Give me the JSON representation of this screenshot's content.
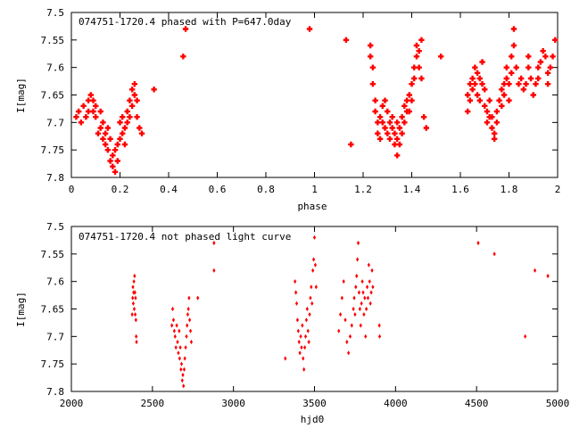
{
  "chart_data": [
    {
      "type": "scatter",
      "title": "074751-1720.4 phased with P=647.0day",
      "xlabel": "phase",
      "ylabel": "I[mag]",
      "xlim": [
        0,
        2
      ],
      "ylim": [
        7.8,
        7.5
      ],
      "y_inverted": true,
      "xticks": [
        "0",
        "0.2",
        "0.4",
        "0.6",
        "0.8",
        "1",
        "1.2",
        "1.4",
        "1.6",
        "1.8",
        "2"
      ],
      "yticks": [
        "7.5",
        "7.55",
        "7.6",
        "7.65",
        "7.7",
        "7.75",
        "7.8"
      ],
      "marker": "plus",
      "color": "#ff0000",
      "points": [
        [
          0.02,
          7.69
        ],
        [
          0.03,
          7.68
        ],
        [
          0.04,
          7.7
        ],
        [
          0.05,
          7.67
        ],
        [
          0.06,
          7.69
        ],
        [
          0.07,
          7.66
        ],
        [
          0.07,
          7.68
        ],
        [
          0.08,
          7.65
        ],
        [
          0.09,
          7.66
        ],
        [
          0.09,
          7.68
        ],
        [
          0.1,
          7.67
        ],
        [
          0.1,
          7.69
        ],
        [
          0.11,
          7.72
        ],
        [
          0.12,
          7.68
        ],
        [
          0.12,
          7.71
        ],
        [
          0.13,
          7.73
        ],
        [
          0.13,
          7.7
        ],
        [
          0.14,
          7.72
        ],
        [
          0.14,
          7.74
        ],
        [
          0.15,
          7.71
        ],
        [
          0.15,
          7.75
        ],
        [
          0.16,
          7.73
        ],
        [
          0.16,
          7.77
        ],
        [
          0.17,
          7.76
        ],
        [
          0.17,
          7.78
        ],
        [
          0.18,
          7.75
        ],
        [
          0.18,
          7.79
        ],
        [
          0.19,
          7.77
        ],
        [
          0.19,
          7.74
        ],
        [
          0.2,
          7.73
        ],
        [
          0.2,
          7.7
        ],
        [
          0.21,
          7.72
        ],
        [
          0.21,
          7.69
        ],
        [
          0.22,
          7.71
        ],
        [
          0.22,
          7.74
        ],
        [
          0.23,
          7.7
        ],
        [
          0.23,
          7.68
        ],
        [
          0.24,
          7.69
        ],
        [
          0.24,
          7.66
        ],
        [
          0.25,
          7.67
        ],
        [
          0.25,
          7.64
        ],
        [
          0.26,
          7.65
        ],
        [
          0.26,
          7.63
        ],
        [
          0.27,
          7.66
        ],
        [
          0.27,
          7.69
        ],
        [
          0.28,
          7.71
        ],
        [
          0.29,
          7.72
        ],
        [
          0.34,
          7.64
        ],
        [
          0.46,
          7.58
        ],
        [
          0.47,
          7.53
        ],
        [
          0.98,
          7.53
        ],
        [
          1.13,
          7.55
        ],
        [
          1.15,
          7.74
        ],
        [
          1.23,
          7.56
        ],
        [
          1.23,
          7.58
        ],
        [
          1.24,
          7.6
        ],
        [
          1.24,
          7.63
        ],
        [
          1.25,
          7.66
        ],
        [
          1.25,
          7.68
        ],
        [
          1.26,
          7.7
        ],
        [
          1.26,
          7.72
        ],
        [
          1.27,
          7.69
        ],
        [
          1.27,
          7.73
        ],
        [
          1.28,
          7.67
        ],
        [
          1.28,
          7.7
        ],
        [
          1.29,
          7.66
        ],
        [
          1.29,
          7.71
        ],
        [
          1.3,
          7.68
        ],
        [
          1.3,
          7.72
        ],
        [
          1.31,
          7.7
        ],
        [
          1.31,
          7.73
        ],
        [
          1.32,
          7.69
        ],
        [
          1.32,
          7.71
        ],
        [
          1.33,
          7.72
        ],
        [
          1.33,
          7.74
        ],
        [
          1.34,
          7.7
        ],
        [
          1.34,
          7.73
        ],
        [
          1.34,
          7.76
        ],
        [
          1.35,
          7.71
        ],
        [
          1.35,
          7.74
        ],
        [
          1.36,
          7.69
        ],
        [
          1.36,
          7.72
        ],
        [
          1.37,
          7.67
        ],
        [
          1.37,
          7.7
        ],
        [
          1.38,
          7.66
        ],
        [
          1.38,
          7.68
        ],
        [
          1.39,
          7.65
        ],
        [
          1.39,
          7.68
        ],
        [
          1.4,
          7.63
        ],
        [
          1.4,
          7.66
        ],
        [
          1.41,
          7.62
        ],
        [
          1.41,
          7.6
        ],
        [
          1.42,
          7.58
        ],
        [
          1.42,
          7.56
        ],
        [
          1.43,
          7.57
        ],
        [
          1.43,
          7.6
        ],
        [
          1.44,
          7.55
        ],
        [
          1.44,
          7.62
        ],
        [
          1.45,
          7.69
        ],
        [
          1.46,
          7.71
        ],
        [
          1.52,
          7.58
        ],
        [
          1.63,
          7.68
        ],
        [
          1.63,
          7.65
        ],
        [
          1.64,
          7.63
        ],
        [
          1.64,
          7.66
        ],
        [
          1.65,
          7.62
        ],
        [
          1.65,
          7.64
        ],
        [
          1.66,
          7.6
        ],
        [
          1.66,
          7.63
        ],
        [
          1.67,
          7.61
        ],
        [
          1.67,
          7.65
        ],
        [
          1.68,
          7.62
        ],
        [
          1.68,
          7.66
        ],
        [
          1.69,
          7.59
        ],
        [
          1.69,
          7.63
        ],
        [
          1.7,
          7.64
        ],
        [
          1.7,
          7.67
        ],
        [
          1.71,
          7.68
        ],
        [
          1.71,
          7.7
        ],
        [
          1.72,
          7.66
        ],
        [
          1.72,
          7.69
        ],
        [
          1.73,
          7.71
        ],
        [
          1.73,
          7.69
        ],
        [
          1.74,
          7.72
        ],
        [
          1.74,
          7.73
        ],
        [
          1.75,
          7.7
        ],
        [
          1.75,
          7.68
        ],
        [
          1.76,
          7.66
        ],
        [
          1.77,
          7.64
        ],
        [
          1.77,
          7.67
        ],
        [
          1.78,
          7.63
        ],
        [
          1.78,
          7.65
        ],
        [
          1.79,
          7.62
        ],
        [
          1.79,
          7.6
        ],
        [
          1.8,
          7.63
        ],
        [
          1.8,
          7.66
        ],
        [
          1.81,
          7.61
        ],
        [
          1.81,
          7.58
        ],
        [
          1.82,
          7.56
        ],
        [
          1.82,
          7.53
        ],
        [
          1.83,
          7.6
        ],
        [
          1.84,
          7.63
        ],
        [
          1.85,
          7.62
        ],
        [
          1.86,
          7.64
        ],
        [
          1.87,
          7.63
        ],
        [
          1.88,
          7.6
        ],
        [
          1.88,
          7.58
        ],
        [
          1.89,
          7.62
        ],
        [
          1.9,
          7.65
        ],
        [
          1.91,
          7.63
        ],
        [
          1.92,
          7.6
        ],
        [
          1.92,
          7.62
        ],
        [
          1.93,
          7.59
        ],
        [
          1.94,
          7.57
        ],
        [
          1.95,
          7.58
        ],
        [
          1.96,
          7.61
        ],
        [
          1.96,
          7.63
        ],
        [
          1.97,
          7.6
        ],
        [
          1.98,
          7.58
        ],
        [
          1.99,
          7.55
        ]
      ]
    },
    {
      "type": "scatter",
      "title": "074751-1720.4 not phased light curve",
      "xlabel": "hjd0",
      "ylabel": "I[mag]",
      "xlim": [
        2000,
        5000
      ],
      "ylim": [
        7.8,
        7.5
      ],
      "y_inverted": true,
      "xticks": [
        "2000",
        "2500",
        "3000",
        "3500",
        "4000",
        "4500",
        "5000"
      ],
      "yticks": [
        "7.5",
        "7.55",
        "7.6",
        "7.65",
        "7.7",
        "7.75",
        "7.8"
      ],
      "marker": "diamond",
      "color": "#ff0000",
      "points": [
        [
          2375,
          7.66
        ],
        [
          2378,
          7.63
        ],
        [
          2380,
          7.61
        ],
        [
          2382,
          7.64
        ],
        [
          2384,
          7.62
        ],
        [
          2386,
          7.6
        ],
        [
          2388,
          7.65
        ],
        [
          2390,
          7.59
        ],
        [
          2392,
          7.62
        ],
        [
          2394,
          7.66
        ],
        [
          2396,
          7.63
        ],
        [
          2398,
          7.67
        ],
        [
          2400,
          7.7
        ],
        [
          2402,
          7.71
        ],
        [
          2620,
          7.68
        ],
        [
          2625,
          7.65
        ],
        [
          2630,
          7.67
        ],
        [
          2635,
          7.69
        ],
        [
          2640,
          7.7
        ],
        [
          2645,
          7.72
        ],
        [
          2650,
          7.68
        ],
        [
          2655,
          7.71
        ],
        [
          2660,
          7.73
        ],
        [
          2665,
          7.69
        ],
        [
          2668,
          7.74
        ],
        [
          2672,
          7.72
        ],
        [
          2676,
          7.76
        ],
        [
          2680,
          7.75
        ],
        [
          2684,
          7.78
        ],
        [
          2688,
          7.77
        ],
        [
          2692,
          7.79
        ],
        [
          2696,
          7.76
        ],
        [
          2700,
          7.74
        ],
        [
          2705,
          7.72
        ],
        [
          2710,
          7.7
        ],
        [
          2714,
          7.68
        ],
        [
          2718,
          7.66
        ],
        [
          2722,
          7.65
        ],
        [
          2726,
          7.63
        ],
        [
          2730,
          7.67
        ],
        [
          2735,
          7.69
        ],
        [
          2740,
          7.71
        ],
        [
          2780,
          7.63
        ],
        [
          2880,
          7.53
        ],
        [
          2880,
          7.58
        ],
        [
          3320,
          7.74
        ],
        [
          3380,
          7.6
        ],
        [
          3385,
          7.62
        ],
        [
          3390,
          7.64
        ],
        [
          3395,
          7.67
        ],
        [
          3400,
          7.69
        ],
        [
          3405,
          7.71
        ],
        [
          3410,
          7.73
        ],
        [
          3415,
          7.7
        ],
        [
          3420,
          7.72
        ],
        [
          3425,
          7.68
        ],
        [
          3430,
          7.74
        ],
        [
          3435,
          7.76
        ],
        [
          3440,
          7.72
        ],
        [
          3445,
          7.7
        ],
        [
          3450,
          7.67
        ],
        [
          3455,
          7.65
        ],
        [
          3460,
          7.69
        ],
        [
          3465,
          7.71
        ],
        [
          3470,
          7.66
        ],
        [
          3475,
          7.63
        ],
        [
          3480,
          7.61
        ],
        [
          3485,
          7.64
        ],
        [
          3490,
          7.58
        ],
        [
          3495,
          7.56
        ],
        [
          3500,
          7.52
        ],
        [
          3505,
          7.57
        ],
        [
          3510,
          7.61
        ],
        [
          3650,
          7.69
        ],
        [
          3660,
          7.66
        ],
        [
          3670,
          7.63
        ],
        [
          3680,
          7.6
        ],
        [
          3690,
          7.67
        ],
        [
          3700,
          7.71
        ],
        [
          3710,
          7.73
        ],
        [
          3720,
          7.7
        ],
        [
          3730,
          7.68
        ],
        [
          3740,
          7.65
        ],
        [
          3745,
          7.63
        ],
        [
          3750,
          7.66
        ],
        [
          3755,
          7.61
        ],
        [
          3760,
          7.59
        ],
        [
          3765,
          7.56
        ],
        [
          3770,
          7.53
        ],
        [
          3775,
          7.62
        ],
        [
          3780,
          7.65
        ],
        [
          3785,
          7.68
        ],
        [
          3790,
          7.64
        ],
        [
          3795,
          7.6
        ],
        [
          3800,
          7.62
        ],
        [
          3805,
          7.66
        ],
        [
          3810,
          7.63
        ],
        [
          3815,
          7.7
        ],
        [
          3820,
          7.65
        ],
        [
          3825,
          7.61
        ],
        [
          3830,
          7.63
        ],
        [
          3835,
          7.57
        ],
        [
          3840,
          7.6
        ],
        [
          3845,
          7.64
        ],
        [
          3850,
          7.62
        ],
        [
          3855,
          7.58
        ],
        [
          3860,
          7.61
        ],
        [
          3900,
          7.68
        ],
        [
          3902,
          7.7
        ],
        [
          4510,
          7.53
        ],
        [
          4610,
          7.55
        ],
        [
          4800,
          7.7
        ],
        [
          4860,
          7.58
        ],
        [
          4940,
          7.59
        ]
      ]
    }
  ]
}
